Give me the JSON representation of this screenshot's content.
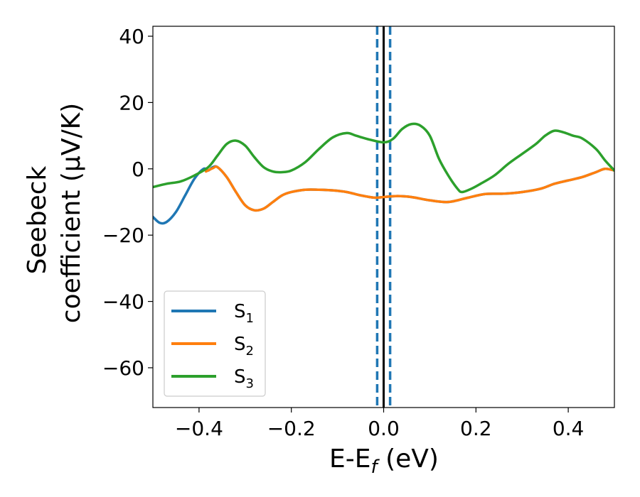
{
  "chart_data": {
    "type": "line",
    "xlabel": "E-E",
    "xlabel_sub": "f",
    "xlabel_unit": " (eV)",
    "ylabel_line1": "Seebeck",
    "ylabel_line2": "coefficient  (μV/K)",
    "xlim": [
      -0.5,
      0.5
    ],
    "ylim": [
      -72,
      43
    ],
    "x_ticks": [
      -0.4,
      -0.2,
      0.0,
      0.2,
      0.4
    ],
    "x_tick_labels": [
      "−0.4",
      "−0.2",
      "0.0",
      "0.2",
      "0.4"
    ],
    "y_ticks": [
      40,
      20,
      0,
      -20,
      -40,
      -60
    ],
    "y_tick_labels": [
      "40",
      "20",
      "0",
      "−20",
      "−40",
      "−60"
    ],
    "grid": false,
    "legend_position": "lower-left",
    "vertical_lines": [
      {
        "x": 0.0,
        "style": "solid",
        "color": "#000000"
      },
      {
        "x": -0.014,
        "style": "dashed",
        "color": "#1f77b4"
      },
      {
        "x": 0.014,
        "style": "dashed",
        "color": "#1f77b4"
      }
    ],
    "series": [
      {
        "name": "S",
        "sub": "1",
        "color": "#1f77b4",
        "x": [
          -0.5,
          -0.485,
          -0.47,
          -0.45,
          -0.43,
          -0.41,
          -0.39,
          -0.38,
          -0.37,
          -0.36,
          -0.34,
          -0.32,
          -0.3,
          -0.28,
          -0.26,
          -0.24,
          -0.22,
          -0.2,
          -0.17,
          -0.14,
          -0.11,
          -0.08,
          -0.05,
          -0.02,
          0.0,
          0.03,
          0.06,
          0.1,
          0.14,
          0.18,
          0.22,
          0.26,
          0.3,
          0.34,
          0.37,
          0.4,
          0.43,
          0.46,
          0.48,
          0.5
        ],
        "y": [
          -14.5,
          -16.3,
          -16.0,
          -13.0,
          -8.0,
          -3.0,
          0.0,
          -0.5,
          0.5,
          0.5,
          -2.5,
          -7.0,
          -11.0,
          -12.5,
          -12.0,
          -10.0,
          -8.0,
          -7.0,
          -6.3,
          -6.3,
          -6.5,
          -7.0,
          -8.0,
          -8.7,
          -8.5,
          -8.2,
          -8.5,
          -9.5,
          -10.0,
          -8.8,
          -7.6,
          -7.5,
          -7.0,
          -6.0,
          -4.5,
          -3.5,
          -2.5,
          -1.0,
          0.0,
          -0.5
        ]
      },
      {
        "name": "S",
        "sub": "2",
        "color": "#ff7f0e",
        "x": [
          -0.385,
          -0.37,
          -0.36,
          -0.34,
          -0.32,
          -0.3,
          -0.28,
          -0.26,
          -0.24,
          -0.22,
          -0.2,
          -0.17,
          -0.14,
          -0.11,
          -0.08,
          -0.05,
          -0.02,
          0.0,
          0.03,
          0.06,
          0.1,
          0.14,
          0.18,
          0.22,
          0.26,
          0.3,
          0.34,
          0.37,
          0.4,
          0.43,
          0.46,
          0.48,
          0.5
        ],
        "y": [
          -0.8,
          0.2,
          0.5,
          -2.5,
          -7.0,
          -11.0,
          -12.5,
          -12.0,
          -10.0,
          -8.0,
          -7.0,
          -6.3,
          -6.3,
          -6.5,
          -7.0,
          -8.0,
          -8.7,
          -8.5,
          -8.2,
          -8.5,
          -9.5,
          -10.0,
          -8.8,
          -7.6,
          -7.5,
          -7.0,
          -6.0,
          -4.5,
          -3.5,
          -2.5,
          -1.0,
          0.0,
          -0.5
        ]
      },
      {
        "name": "S",
        "sub": "3",
        "color": "#2ca02c",
        "x": [
          -0.5,
          -0.47,
          -0.44,
          -0.41,
          -0.38,
          -0.36,
          -0.34,
          -0.32,
          -0.3,
          -0.28,
          -0.26,
          -0.24,
          -0.22,
          -0.2,
          -0.17,
          -0.14,
          -0.11,
          -0.08,
          -0.06,
          -0.03,
          0.0,
          0.02,
          0.04,
          0.06,
          0.08,
          0.1,
          0.12,
          0.14,
          0.16,
          0.17,
          0.19,
          0.21,
          0.24,
          0.27,
          0.3,
          0.33,
          0.35,
          0.37,
          0.39,
          0.41,
          0.43,
          0.46,
          0.48,
          0.5
        ],
        "y": [
          -5.5,
          -4.5,
          -3.8,
          -2.0,
          0.5,
          4.0,
          7.5,
          8.5,
          7.0,
          3.5,
          0.5,
          -0.8,
          -1.0,
          -0.5,
          2.0,
          6.0,
          9.5,
          10.8,
          10.0,
          8.8,
          8.0,
          9.0,
          12.0,
          13.5,
          13.0,
          10.0,
          3.0,
          -2.0,
          -6.0,
          -7.0,
          -6.0,
          -4.5,
          -2.0,
          1.5,
          4.5,
          7.5,
          10.0,
          11.5,
          11.0,
          10.0,
          9.2,
          6.0,
          2.5,
          -0.5
        ]
      }
    ]
  }
}
